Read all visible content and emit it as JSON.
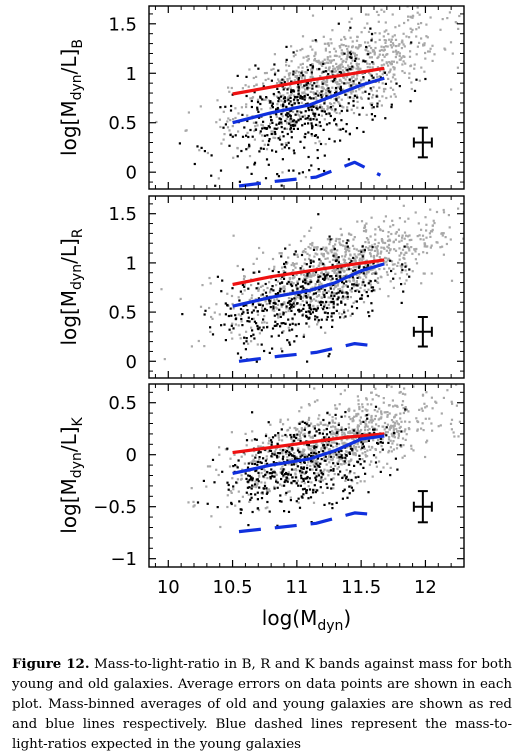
{
  "chart_data": [
    {
      "type": "scatter",
      "panel": "B",
      "ylabel_prefix": "log[M",
      "ylabel_sub": "dyn",
      "ylabel_mid": "/L]",
      "ylabel_band": "B",
      "xlim": [
        9.85,
        12.3
      ],
      "ylim": [
        -0.17,
        1.68
      ],
      "yticks": [
        0,
        0.5,
        1,
        1.5
      ],
      "ytick_labels": [
        "0",
        "0.5",
        "1",
        "1.5"
      ],
      "series": [
        {
          "kind": "old-mean",
          "color": "#ee1111",
          "dashed": false,
          "x": [
            10.5,
            10.8,
            11.1,
            11.4,
            11.68
          ],
          "y": [
            0.79,
            0.86,
            0.93,
            0.99,
            1.05
          ]
        },
        {
          "kind": "young-mean",
          "color": "#1030dd",
          "dashed": false,
          "x": [
            10.5,
            10.8,
            11.1,
            11.3,
            11.5,
            11.68
          ],
          "y": [
            0.5,
            0.6,
            0.68,
            0.78,
            0.88,
            0.95
          ]
        },
        {
          "kind": "young-expected",
          "color": "#1030dd",
          "dashed": true,
          "x": [
            10.55,
            10.85,
            11.15,
            11.45,
            11.65
          ],
          "y": [
            -0.14,
            -0.09,
            -0.05,
            0.1,
            -0.03
          ]
        }
      ],
      "clouds": {
        "grey": {
          "center": [
            11.3,
            0.95
          ],
          "spread": [
            0.4,
            0.22
          ],
          "slope": 0.5,
          "count": 900,
          "color": "#a8a8a8"
        },
        "black": {
          "center": [
            11.05,
            0.62
          ],
          "spread": [
            0.32,
            0.26
          ],
          "slope": 0.45,
          "count": 450,
          "color": "#000000"
        }
      },
      "errorbar": {
        "x": 11.98,
        "y": 0.3,
        "dx": 0.07,
        "dy": 0.15
      }
    },
    {
      "type": "scatter",
      "panel": "R",
      "ylabel_prefix": "log[M",
      "ylabel_sub": "dyn",
      "ylabel_mid": "/L]",
      "ylabel_band": "R",
      "xlim": [
        9.85,
        12.3
      ],
      "ylim": [
        -0.17,
        1.68
      ],
      "yticks": [
        0,
        0.5,
        1,
        1.5
      ],
      "ytick_labels": [
        "0",
        "0.5",
        "1",
        "1.5"
      ],
      "series": [
        {
          "kind": "old-mean",
          "color": "#ee1111",
          "dashed": false,
          "x": [
            10.5,
            10.8,
            11.1,
            11.4,
            11.68
          ],
          "y": [
            0.78,
            0.86,
            0.92,
            0.98,
            1.03
          ]
        },
        {
          "kind": "young-mean",
          "color": "#1030dd",
          "dashed": false,
          "x": [
            10.5,
            10.8,
            11.1,
            11.3,
            11.5,
            11.68
          ],
          "y": [
            0.56,
            0.65,
            0.72,
            0.8,
            0.92,
            0.99
          ]
        },
        {
          "kind": "young-expected",
          "color": "#1030dd",
          "dashed": true,
          "x": [
            10.55,
            10.85,
            11.15,
            11.45,
            11.65
          ],
          "y": [
            0.0,
            0.05,
            0.09,
            0.18,
            0.15
          ]
        }
      ],
      "clouds": {
        "grey": {
          "center": [
            11.3,
            0.92
          ],
          "spread": [
            0.4,
            0.2
          ],
          "slope": 0.45,
          "count": 900,
          "color": "#a8a8a8"
        },
        "black": {
          "center": [
            11.05,
            0.66
          ],
          "spread": [
            0.32,
            0.22
          ],
          "slope": 0.4,
          "count": 450,
          "color": "#000000"
        }
      },
      "errorbar": {
        "x": 11.98,
        "y": 0.3,
        "dx": 0.07,
        "dy": 0.15
      }
    },
    {
      "type": "scatter",
      "panel": "K",
      "ylabel_prefix": "log[M",
      "ylabel_sub": "dyn",
      "ylabel_mid": "/L]",
      "ylabel_band": "K",
      "xlim": [
        9.85,
        12.3
      ],
      "ylim": [
        -1.08,
        0.68
      ],
      "yticks": [
        -1,
        -0.5,
        0,
        0.5
      ],
      "ytick_labels": [
        "−1",
        "−0.5",
        "0",
        "0.5"
      ],
      "series": [
        {
          "kind": "old-mean",
          "color": "#ee1111",
          "dashed": false,
          "x": [
            10.5,
            10.8,
            11.1,
            11.4,
            11.68
          ],
          "y": [
            0.02,
            0.07,
            0.12,
            0.17,
            0.2
          ]
        },
        {
          "kind": "young-mean",
          "color": "#1030dd",
          "dashed": false,
          "x": [
            10.5,
            10.8,
            11.1,
            11.3,
            11.5,
            11.68
          ],
          "y": [
            -0.18,
            -0.1,
            -0.04,
            0.04,
            0.15,
            0.18
          ]
        },
        {
          "kind": "young-expected",
          "color": "#1030dd",
          "dashed": true,
          "x": [
            10.55,
            10.85,
            11.15,
            11.45,
            11.65
          ],
          "y": [
            -0.74,
            -0.7,
            -0.66,
            -0.56,
            -0.58
          ]
        }
      ],
      "clouds": {
        "grey": {
          "center": [
            11.3,
            0.1
          ],
          "spread": [
            0.4,
            0.18
          ],
          "slope": 0.35,
          "count": 900,
          "color": "#a8a8a8"
        },
        "black": {
          "center": [
            11.05,
            -0.08
          ],
          "spread": [
            0.32,
            0.2
          ],
          "slope": 0.3,
          "count": 450,
          "color": "#000000"
        }
      },
      "errorbar": {
        "x": 11.98,
        "y": -0.5,
        "dx": 0.07,
        "dy": 0.15
      }
    }
  ],
  "xaxis": {
    "label_prefix": "log(M",
    "label_sub": "dyn",
    "label_suffix": ")",
    "ticks": [
      10,
      10.5,
      11,
      11.5,
      12
    ],
    "tick_labels": [
      "10",
      "10.5",
      "11",
      "11.5",
      "12"
    ]
  },
  "caption": {
    "figure_label": "Figure 12.",
    "text": " Mass-to-light-ratio in B, R and K bands against mass for both young and old galaxies. Average errors on data points are shown in each plot. Mass-binned averages of old and young galaxies are shown as red and blue lines respectively. Blue dashed lines represent the mass-to-light-ratios expected in the young galaxies"
  }
}
